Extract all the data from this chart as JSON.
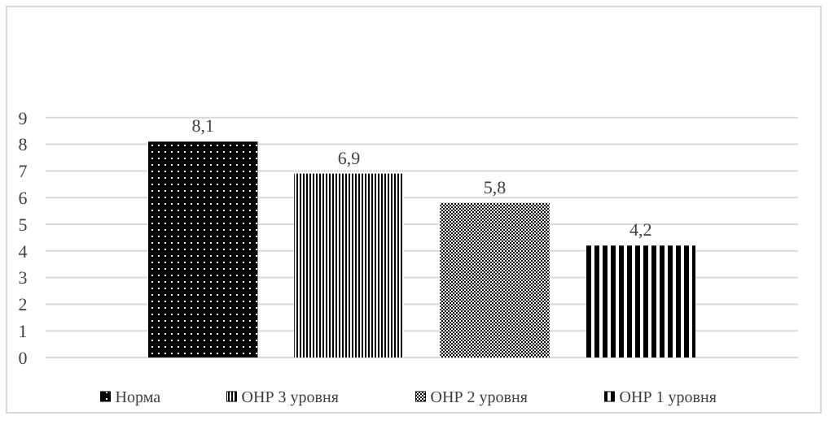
{
  "chart_data": {
    "type": "bar",
    "categories": [
      null
    ],
    "series": [
      {
        "name": "Норма",
        "color": "#000000",
        "values": [
          8.1
        ],
        "value_labels": [
          "8,1"
        ]
      },
      {
        "name": "ОНР 3 уровня",
        "color": "#000000",
        "values": [
          6.9
        ],
        "value_labels": [
          "6,9"
        ]
      },
      {
        "name": "ОНР 2 уровня",
        "color": "#000000",
        "values": [
          5.8
        ],
        "value_labels": [
          "5,8"
        ]
      },
      {
        "name": "ОНР 1 уровня",
        "color": "#000000",
        "values": [
          4.2
        ],
        "value_labels": [
          "4,2"
        ]
      }
    ],
    "ylim": [
      0,
      9
    ],
    "yticks": [
      0,
      1,
      2,
      3,
      4,
      5,
      6,
      7,
      8,
      9
    ],
    "grid": "y",
    "legend": "bottom"
  }
}
